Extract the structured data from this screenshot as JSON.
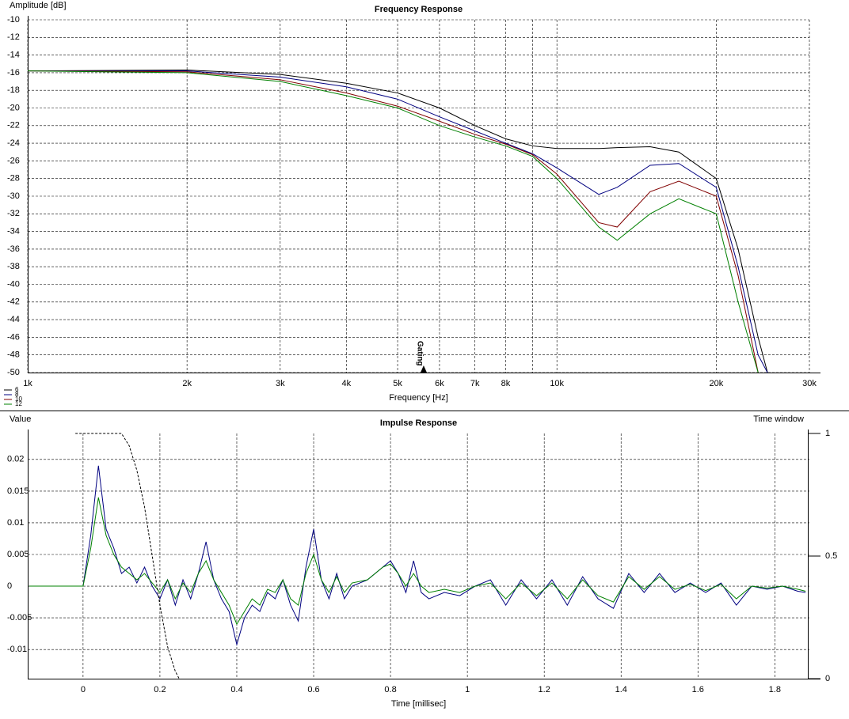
{
  "chart_data": [
    {
      "type": "line",
      "title": "Frequency Response",
      "ylabel": "Amplitude [dB]",
      "xlabel": "Frequency [Hz]",
      "log_x": true,
      "grid": true,
      "legend": "bottom-left",
      "xlim": [
        1000,
        30000
      ],
      "ylim": [
        -50,
        -10
      ],
      "xticks": [
        {
          "value": 1000,
          "label": "1k"
        },
        {
          "value": 2000,
          "label": "2k"
        },
        {
          "value": 3000,
          "label": "3k"
        },
        {
          "value": 4000,
          "label": "4k"
        },
        {
          "value": 5000,
          "label": "5k"
        },
        {
          "value": 6000,
          "label": "6k"
        },
        {
          "value": 7000,
          "label": "7k"
        },
        {
          "value": 8000,
          "label": "8k"
        },
        {
          "value": 9000,
          "label": null
        },
        {
          "value": 10000,
          "label": "10k"
        },
        {
          "value": 20000,
          "label": "20k"
        },
        {
          "value": 30000,
          "label": "30k"
        }
      ],
      "yticks": [
        -10,
        -12,
        -14,
        -16,
        -18,
        -20,
        -22,
        -24,
        -26,
        -28,
        -30,
        -32,
        -34,
        -36,
        -38,
        -40,
        -42,
        -44,
        -46,
        -48,
        -50
      ],
      "annotations": [
        {
          "text": "Gating",
          "x": 5600
        }
      ],
      "x": [
        1000,
        2000,
        3000,
        4000,
        5000,
        6000,
        7000,
        8000,
        9000,
        10000,
        12000,
        13000,
        15000,
        17000,
        20000,
        22000,
        24000,
        25000
      ],
      "series": [
        {
          "name": "6",
          "color": "#000000",
          "values": [
            -15.8,
            -15.7,
            -16.2,
            -17.2,
            -18.3,
            -20,
            -22,
            -23.5,
            -24.3,
            -24.6,
            -24.6,
            -24.5,
            -24.4,
            -25,
            -28,
            -36,
            -46,
            -50
          ]
        },
        {
          "name": "8",
          "color": "#000080",
          "values": [
            -15.8,
            -15.8,
            -16.5,
            -17.6,
            -19,
            -21,
            -22.6,
            -24,
            -25.2,
            -26.8,
            -29.8,
            -29,
            -26.5,
            -26.3,
            -29,
            -38,
            -48,
            -50
          ]
        },
        {
          "name": "10",
          "color": "#800000",
          "values": [
            -15.8,
            -15.9,
            -16.8,
            -18.3,
            -19.8,
            -21.5,
            -23,
            -24.1,
            -25.3,
            -27.5,
            -33,
            -33.5,
            -29.5,
            -28.3,
            -30,
            -39,
            -50,
            null
          ]
        },
        {
          "name": "12",
          "color": "#008000",
          "values": [
            -15.8,
            -16,
            -17,
            -18.6,
            -20,
            -22,
            -23.3,
            -24.3,
            -25.5,
            -28,
            -33.5,
            -35,
            -32,
            -30.3,
            -32,
            -42,
            -50,
            null
          ]
        }
      ]
    },
    {
      "type": "line",
      "title": "Impulse Response",
      "ylabel": "Value",
      "y2label": "Time window",
      "xlabel": "Time [millisec]",
      "log_x": false,
      "grid": true,
      "xlim": [
        -0.144,
        1.89
      ],
      "ylim": [
        -0.0146,
        0.0241
      ],
      "y2lim": [
        0,
        1
      ],
      "xticks": [
        0,
        0.2,
        0.4,
        0.6,
        0.8,
        1,
        1.2,
        1.4,
        1.6,
        1.8
      ],
      "yticks": [
        0.02,
        0.015,
        0.01,
        0.005,
        0,
        -0.005,
        -0.01
      ],
      "y2ticks": [
        0,
        0.5,
        1
      ],
      "x": [
        -0.14,
        0,
        0.02,
        0.04,
        0.06,
        0.08,
        0.1,
        0.12,
        0.14,
        0.16,
        0.18,
        0.2,
        0.22,
        0.24,
        0.26,
        0.28,
        0.3,
        0.32,
        0.34,
        0.36,
        0.38,
        0.4,
        0.42,
        0.44,
        0.46,
        0.48,
        0.5,
        0.52,
        0.54,
        0.56,
        0.58,
        0.6,
        0.62,
        0.64,
        0.66,
        0.68,
        0.7,
        0.74,
        0.78,
        0.8,
        0.82,
        0.84,
        0.86,
        0.88,
        0.9,
        0.94,
        0.98,
        1.02,
        1.06,
        1.1,
        1.14,
        1.18,
        1.22,
        1.26,
        1.3,
        1.34,
        1.38,
        1.42,
        1.46,
        1.5,
        1.54,
        1.58,
        1.62,
        1.66,
        1.7,
        1.74,
        1.78,
        1.82,
        1.86,
        1.88
      ],
      "series": [
        {
          "color": "#000080",
          "values": [
            0,
            0,
            0.008,
            0.019,
            0.009,
            0.006,
            0.002,
            0.003,
            0.0005,
            0.003,
            0,
            -0.002,
            0.001,
            -0.003,
            0.001,
            -0.002,
            0.002,
            0.007,
            0.001,
            -0.002,
            -0.004,
            -0.0092,
            -0.005,
            -0.003,
            -0.004,
            -0.001,
            -0.002,
            0.001,
            -0.003,
            -0.0055,
            0.003,
            0.009,
            0.001,
            -0.002,
            0.002,
            -0.002,
            0,
            0.001,
            0.003,
            0.004,
            0.002,
            -0.001,
            0.004,
            -0.001,
            -0.002,
            -0.001,
            -0.0015,
            0,
            0.001,
            -0.003,
            0.001,
            -0.002,
            0.001,
            -0.003,
            0.0015,
            -0.002,
            -0.0035,
            0.002,
            -0.001,
            0.002,
            -0.001,
            0.0005,
            -0.001,
            0.0005,
            -0.003,
            0,
            -0.0005,
            0,
            -0.0008,
            -0.001
          ]
        },
        {
          "color": "#008000",
          "values": [
            0,
            0,
            0.006,
            0.014,
            0.008,
            0.005,
            0.003,
            0.002,
            0.001,
            0.002,
            0.0005,
            -0.001,
            0.001,
            -0.002,
            0.0005,
            -0.001,
            0.002,
            0.004,
            0.001,
            -0.001,
            -0.003,
            -0.006,
            -0.004,
            -0.002,
            -0.003,
            -0.0005,
            -0.001,
            0.001,
            -0.002,
            -0.003,
            0.002,
            0.005,
            0.001,
            -0.001,
            0.0015,
            -0.001,
            0.0005,
            0.001,
            0.003,
            0.0035,
            0.002,
            0,
            0.002,
            0,
            -0.001,
            -0.0005,
            -0.001,
            0,
            0.0005,
            -0.002,
            0.0005,
            -0.0015,
            0.0005,
            -0.002,
            0.001,
            -0.0015,
            -0.0025,
            0.0015,
            -0.0005,
            0.0015,
            -0.0005,
            0.0003,
            -0.0007,
            0.0003,
            -0.002,
            0,
            -0.0003,
            0,
            -0.0005,
            -0.0008
          ]
        },
        {
          "color": "#000000",
          "dashed": true,
          "axis": "y2",
          "x": [
            -0.02,
            0,
            0.1,
            0.12,
            0.14,
            0.16,
            0.18,
            0.2,
            0.22,
            0.24,
            0.25
          ],
          "values": [
            1,
            1,
            1,
            0.95,
            0.85,
            0.7,
            0.5,
            0.3,
            0.13,
            0.03,
            0
          ]
        }
      ]
    }
  ]
}
